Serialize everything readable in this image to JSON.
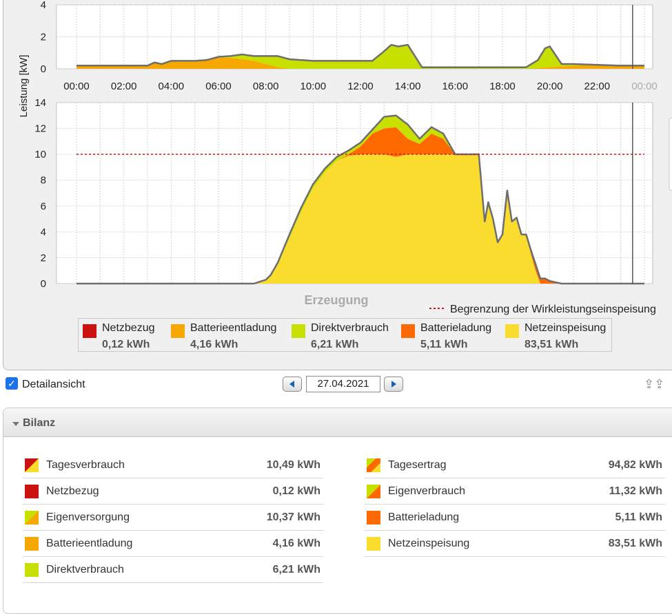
{
  "colors": {
    "netzbezug": "#cc1111",
    "batterieentladung": "#f7a800",
    "direktverbrauch": "#c8e000",
    "batterieladung": "#ff6a00",
    "netzeinspeisung": "#f9dc2e",
    "limit_line": "#d01818",
    "outline": "#6e6e6e"
  },
  "chart_data": [
    {
      "type": "area",
      "ylabel": "Leistung [kW]",
      "ylim": [
        0,
        4
      ],
      "yticks": [
        "0",
        "2",
        "4"
      ],
      "x_labels": [
        "00:00",
        "02:00",
        "04:00",
        "06:00",
        "08:00",
        "10:00",
        "12:00",
        "14:00",
        "16:00",
        "18:00",
        "20:00",
        "22:00",
        "00:00"
      ],
      "series": [
        {
          "name": "Batterieentladung",
          "color_key": "batterieentladung",
          "x": [
            0,
            1,
            2,
            3,
            3.3,
            3.6,
            4,
            4.5,
            5,
            5.5,
            6,
            6.5,
            7,
            7.5,
            8,
            8.5,
            9,
            10,
            11,
            12,
            13,
            14,
            15,
            16,
            17,
            18,
            19,
            20,
            21,
            22,
            23,
            24
          ],
          "values": [
            0.2,
            0.2,
            0.2,
            0.2,
            0.4,
            0.3,
            0.5,
            0.5,
            0.5,
            0.55,
            0.7,
            0.7,
            0.6,
            0.5,
            0.3,
            0.1,
            0,
            0,
            0,
            0,
            0,
            0,
            0,
            0,
            0,
            0,
            0,
            0.1,
            0.2,
            0.25,
            0.2,
            0.2
          ]
        },
        {
          "name": "Direktverbrauch",
          "color_key": "direktverbrauch",
          "x": [
            0,
            1,
            2,
            3,
            3.3,
            3.6,
            4,
            4.5,
            5,
            5.5,
            6,
            6.5,
            7,
            7.5,
            8,
            8.5,
            9,
            10,
            11,
            12,
            12.5,
            13,
            13.3,
            13.6,
            14,
            14.3,
            14.6,
            15,
            16,
            17,
            18,
            19,
            19.5,
            19.8,
            20,
            20.5,
            21,
            22,
            23,
            24
          ],
          "values": [
            0,
            0,
            0,
            0,
            0,
            0,
            0,
            0,
            0,
            0,
            0.05,
            0.1,
            0.3,
            0.3,
            0.5,
            0.7,
            0.6,
            0.5,
            0.5,
            0.5,
            0.5,
            1.1,
            1.5,
            1.4,
            1.5,
            0.8,
            0.1,
            0.1,
            0.1,
            0.1,
            0.1,
            0.1,
            0.5,
            1.2,
            1.3,
            0.15,
            0.1,
            0,
            0,
            0
          ]
        }
      ]
    },
    {
      "type": "area",
      "title": "Erzeugung",
      "ylim": [
        0,
        14
      ],
      "yticks": [
        "0",
        "2",
        "4",
        "6",
        "8",
        "10",
        "12",
        "14"
      ],
      "limit_line": {
        "value": 10,
        "label": "Begrenzung der Wirkleistungseinspeisung"
      },
      "series": [
        {
          "name": "Netzeinspeisung",
          "color_key": "netzeinspeisung",
          "x": [
            0,
            6,
            7.5,
            8,
            8.2,
            8.5,
            9,
            9.5,
            10,
            10.5,
            11,
            11.5,
            12,
            12.5,
            13,
            13.5,
            14,
            14.5,
            15,
            15.5,
            16,
            16.5,
            17,
            17.25,
            17.4,
            17.6,
            17.8,
            18,
            18.2,
            18.4,
            18.6,
            18.8,
            19,
            19.2,
            19.4,
            19.6,
            20,
            20.5,
            21,
            24
          ],
          "values": [
            0,
            0,
            0,
            0.3,
            0.6,
            1.5,
            3.5,
            5.6,
            7.4,
            8.6,
            9.5,
            9.9,
            10,
            10,
            10,
            9.8,
            10,
            10,
            10,
            10,
            10,
            10,
            10,
            4.8,
            6.3,
            5,
            3.2,
            3.8,
            7.2,
            4.8,
            5.1,
            3.8,
            3.7,
            2.3,
            1,
            0,
            0,
            0,
            0,
            0
          ]
        },
        {
          "name": "Batterieladung",
          "color_key": "batterieladung",
          "x": [
            0,
            10.5,
            11,
            11.5,
            12,
            12.5,
            13,
            13.5,
            14,
            14.5,
            15,
            15.5,
            16,
            18.8,
            19,
            19.2,
            19.4,
            19.6,
            19.8,
            20,
            20.5,
            21,
            24
          ],
          "values": [
            0,
            0,
            0,
            0.1,
            0.6,
            1.6,
            2,
            2.3,
            1.2,
            0.8,
            1.6,
            1.2,
            0,
            0,
            0.1,
            0.3,
            0.5,
            0.4,
            0.4,
            0.2,
            0,
            0,
            0
          ]
        },
        {
          "name": "Direktverbrauch",
          "color_key": "direktverbrauch",
          "x": [
            0,
            7.5,
            8,
            8.2,
            8.5,
            9,
            9.5,
            10,
            10.5,
            11,
            11.5,
            12,
            12.5,
            13,
            13.5,
            14,
            14.5,
            15,
            15.5,
            16,
            24
          ],
          "values": [
            0,
            0,
            0,
            0.05,
            0.1,
            0.3,
            0.3,
            0.3,
            0.3,
            0.3,
            0.3,
            0.3,
            0.3,
            0.9,
            0.9,
            1.1,
            0.4,
            0.5,
            0.4,
            0,
            0
          ]
        }
      ]
    }
  ],
  "legend": [
    {
      "name": "Netzbezug",
      "value": "0,12 kWh",
      "color_key": "netzbezug"
    },
    {
      "name": "Batterieentladung",
      "value": "4,16 kWh",
      "color_key": "batterieentladung"
    },
    {
      "name": "Direktverbrauch",
      "value": "6,21 kWh",
      "color_key": "direktverbrauch"
    },
    {
      "name": "Batterieladung",
      "value": "5,11 kWh",
      "color_key": "batterieladung"
    },
    {
      "name": "Netzeinspeisung",
      "value": "83,51 kWh",
      "color_key": "netzeinspeisung"
    }
  ],
  "detail": {
    "label": "Detailansicht",
    "checked": true,
    "date": "27.04.2021"
  },
  "bilanz": {
    "title": "Bilanz",
    "left": [
      {
        "name": "Tagesverbrauch",
        "value": "10,49 kWh",
        "swatch": "netzbezug+netzeinspeisung"
      },
      {
        "name": "Netzbezug",
        "value": "0,12 kWh",
        "swatch": "netzbezug"
      },
      {
        "name": "Eigenversorgung",
        "value": "10,37 kWh",
        "swatch": "direktverbrauch+batterieentladung"
      },
      {
        "name": "Batterieentladung",
        "value": "4,16 kWh",
        "swatch": "batterieentladung"
      },
      {
        "name": "Direktverbrauch",
        "value": "6,21 kWh",
        "swatch": "direktverbrauch"
      }
    ],
    "right": [
      {
        "name": "Tagesertrag",
        "value": "94,82 kWh",
        "swatch": "direktverbrauch+batterieladung+netzeinspeisung"
      },
      {
        "name": "Eigenverbrauch",
        "value": "11,32 kWh",
        "swatch": "direktverbrauch+batterieladung"
      },
      {
        "name": "Batterieladung",
        "value": "5,11 kWh",
        "swatch": "batterieladung"
      },
      {
        "name": "Netzeinspeisung",
        "value": "83,51 kWh",
        "swatch": "netzeinspeisung"
      }
    ]
  }
}
